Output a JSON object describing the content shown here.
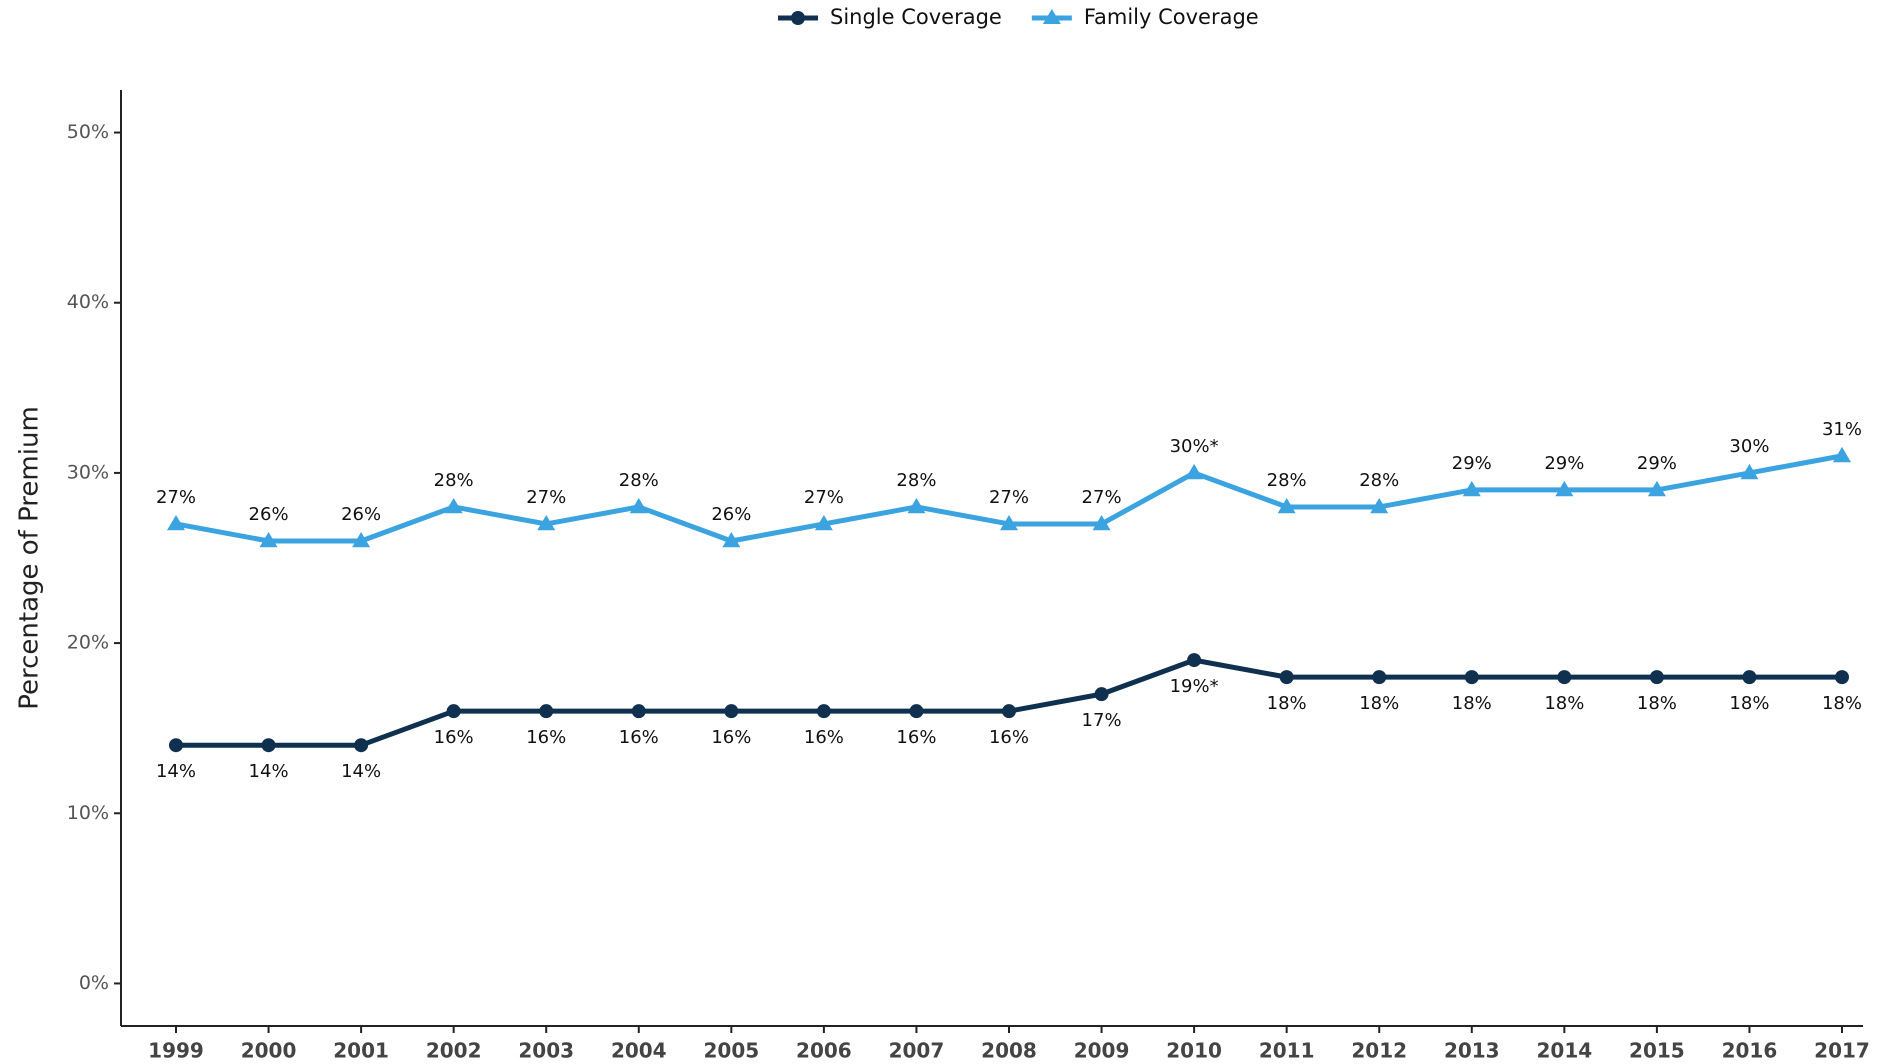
{
  "chart_data": {
    "type": "line",
    "y_label": "Percentage of Premium",
    "categories": [
      "1999",
      "2000",
      "2001",
      "2002",
      "2003",
      "2004",
      "2005",
      "2006",
      "2007",
      "2008",
      "2009",
      "2010",
      "2011",
      "2012",
      "2013",
      "2014",
      "2015",
      "2016",
      "2017"
    ],
    "series": [
      {
        "name": "Single Coverage",
        "color": "#10304f",
        "marker": "circle",
        "values": [
          14,
          14,
          14,
          16,
          16,
          16,
          16,
          16,
          16,
          16,
          17,
          19,
          18,
          18,
          18,
          18,
          18,
          18,
          18
        ],
        "value_labels": [
          "14%",
          "14%",
          "14%",
          "16%",
          "16%",
          "16%",
          "16%",
          "16%",
          "16%",
          "16%",
          "17%",
          "19%*",
          "18%",
          "18%",
          "18%",
          "18%",
          "18%",
          "18%",
          "18%"
        ]
      },
      {
        "name": "Family Coverage",
        "color": "#3ba3e0",
        "marker": "triangle",
        "values": [
          27,
          26,
          26,
          28,
          27,
          28,
          26,
          27,
          28,
          27,
          27,
          30,
          28,
          28,
          29,
          29,
          29,
          30,
          31
        ],
        "value_labels": [
          "27%",
          "26%",
          "26%",
          "28%",
          "27%",
          "28%",
          "26%",
          "27%",
          "28%",
          "27%",
          "27%",
          "30%*",
          "28%",
          "28%",
          "29%",
          "29%",
          "29%",
          "30%",
          "31%"
        ]
      }
    ],
    "ylim": [
      -2.5,
      52.5
    ],
    "yticks": [
      {
        "value": 0,
        "label": "0%"
      },
      {
        "value": 10,
        "label": "10%"
      },
      {
        "value": 20,
        "label": "20%"
      },
      {
        "value": 30,
        "label": "30%"
      },
      {
        "value": 40,
        "label": "40%"
      },
      {
        "value": 50,
        "label": "50%"
      }
    ],
    "legend": "top"
  }
}
